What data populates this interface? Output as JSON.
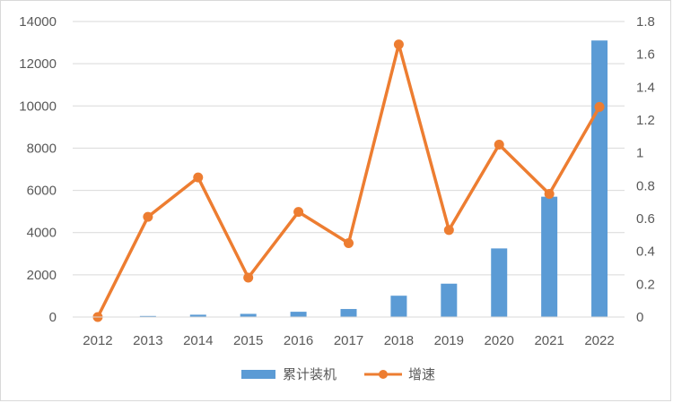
{
  "chart_data": {
    "type": "bar",
    "categories": [
      "2012",
      "2013",
      "2014",
      "2015",
      "2016",
      "2017",
      "2018",
      "2019",
      "2020",
      "2021",
      "2022"
    ],
    "series": [
      {
        "name": "累计装机",
        "type": "bar",
        "axis": "left",
        "color": "#5b9bd5",
        "values": [
          10,
          50,
          110,
          150,
          250,
          380,
          1010,
          1580,
          3250,
          5700,
          13100
        ]
      },
      {
        "name": "增速",
        "type": "line",
        "axis": "right",
        "color": "#ed7d31",
        "values": [
          0,
          0.61,
          0.85,
          0.24,
          0.64,
          0.45,
          1.66,
          0.53,
          1.05,
          0.75,
          1.28
        ]
      }
    ],
    "y_left": {
      "ylim": [
        0,
        14000
      ],
      "ticks": [
        "0",
        "2000",
        "4000",
        "6000",
        "8000",
        "10000",
        "12000",
        "14000"
      ]
    },
    "y_right": {
      "ylim": [
        0,
        1.8
      ],
      "ticks": [
        "0",
        "0.2",
        "0.4",
        "0.6",
        "0.8",
        "1",
        "1.2",
        "1.4",
        "1.6",
        "1.8"
      ]
    },
    "grid": true,
    "legend": "bottom"
  }
}
